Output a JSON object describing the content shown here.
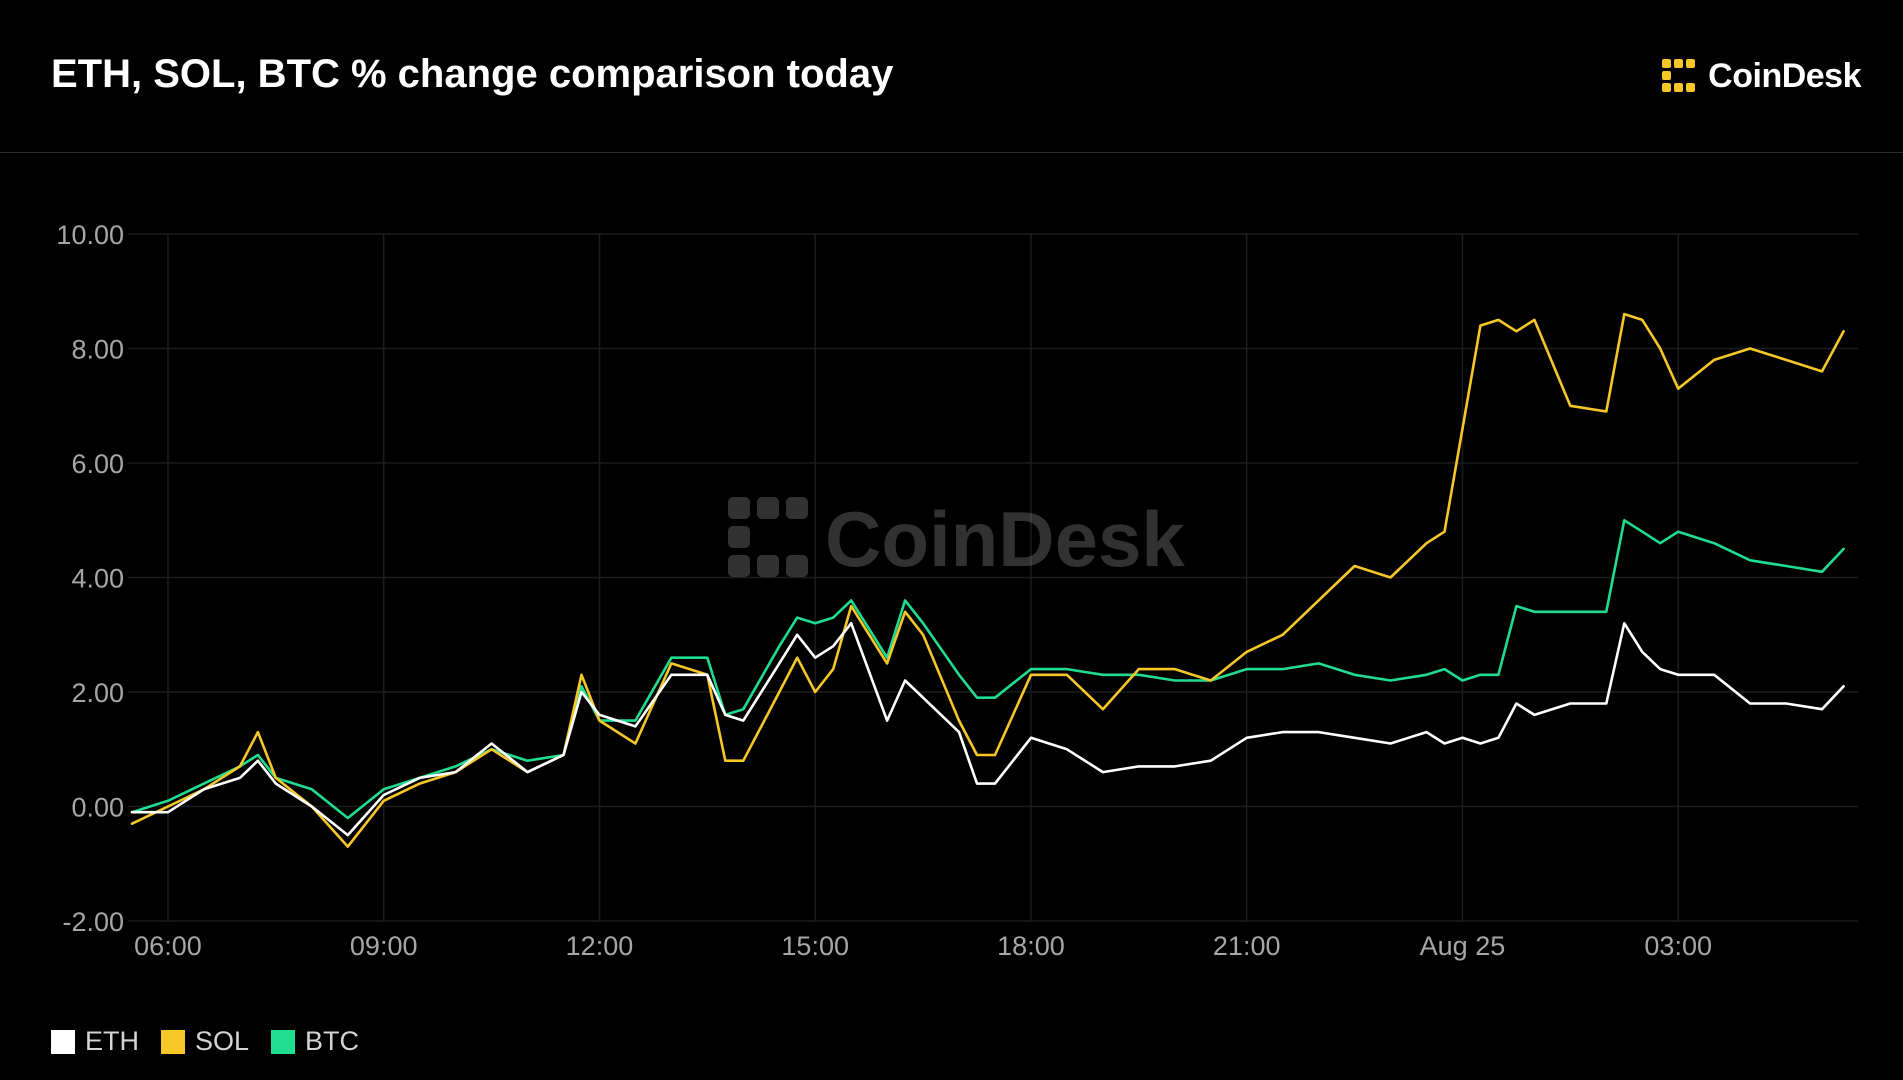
{
  "header": {
    "title": "ETH, SOL, BTC % change comparison today",
    "brand": "CoinDesk"
  },
  "watermark": "CoinDesk",
  "colors": {
    "background": "#000000",
    "ETH": "#ffffff",
    "SOL": "#f6c727",
    "BTC": "#1fdc8f",
    "brand_yellow": "#f6c727",
    "grid": "#1c1c1c",
    "tick_text": "#a6a6a6"
  },
  "chart_data": {
    "type": "line",
    "title": "ETH, SOL, BTC % change comparison today",
    "xlabel": "",
    "ylabel": "",
    "ylim": [
      -2,
      10
    ],
    "y_ticks": [
      "10.00",
      "8.00",
      "6.00",
      "4.00",
      "2.00",
      "0.00",
      "-2.00"
    ],
    "x_range_hours": [
      5.5,
      29.5
    ],
    "x_ticks": [
      {
        "t": 6,
        "label": "06:00"
      },
      {
        "t": 9,
        "label": "09:00"
      },
      {
        "t": 12,
        "label": "12:00"
      },
      {
        "t": 15,
        "label": "15:00"
      },
      {
        "t": 18,
        "label": "18:00"
      },
      {
        "t": 21,
        "label": "21:00"
      },
      {
        "t": 24,
        "label": "Aug 25"
      },
      {
        "t": 27,
        "label": "03:00"
      }
    ],
    "grid": true,
    "legend_position": "bottom-left",
    "x_hours": [
      5.5,
      6.0,
      6.5,
      7.0,
      7.25,
      7.5,
      8.0,
      8.5,
      9.0,
      9.5,
      10.0,
      10.5,
      11.0,
      11.5,
      11.75,
      12.0,
      12.5,
      13.0,
      13.5,
      13.75,
      14.0,
      14.5,
      14.75,
      15.0,
      15.25,
      15.5,
      16.0,
      16.25,
      16.5,
      17.0,
      17.25,
      17.5,
      18.0,
      18.5,
      19.0,
      19.5,
      20.0,
      20.5,
      21.0,
      21.5,
      22.0,
      22.5,
      23.0,
      23.5,
      23.75,
      24.0,
      24.25,
      24.5,
      24.75,
      25.0,
      25.5,
      26.0,
      26.25,
      26.5,
      26.75,
      27.0,
      27.5,
      28.0,
      28.5,
      29.0,
      29.3
    ],
    "series": [
      {
        "name": "ETH",
        "values": [
          -0.1,
          -0.1,
          0.3,
          0.5,
          0.8,
          0.4,
          0.0,
          -0.5,
          0.2,
          0.5,
          0.6,
          1.1,
          0.6,
          0.9,
          2.0,
          1.6,
          1.4,
          2.3,
          2.3,
          1.6,
          1.5,
          2.5,
          3.0,
          2.6,
          2.8,
          3.2,
          1.5,
          2.2,
          1.9,
          1.3,
          0.4,
          0.4,
          1.2,
          1.0,
          0.6,
          0.7,
          0.7,
          0.8,
          1.2,
          1.3,
          1.3,
          1.2,
          1.1,
          1.3,
          1.1,
          1.2,
          1.1,
          1.2,
          1.8,
          1.6,
          1.8,
          1.8,
          3.2,
          2.7,
          2.4,
          2.3,
          2.3,
          1.8,
          1.8,
          1.7,
          2.1
        ]
      },
      {
        "name": "SOL",
        "values": [
          -0.3,
          0.0,
          0.3,
          0.7,
          1.3,
          0.5,
          0.0,
          -0.7,
          0.1,
          0.4,
          0.6,
          1.0,
          0.6,
          0.9,
          2.3,
          1.5,
          1.1,
          2.5,
          2.3,
          0.8,
          0.8,
          2.0,
          2.6,
          2.0,
          2.4,
          3.5,
          2.5,
          3.4,
          3.0,
          1.5,
          0.9,
          0.9,
          2.3,
          2.3,
          1.7,
          2.4,
          2.4,
          2.2,
          2.7,
          3.0,
          3.6,
          4.2,
          4.0,
          4.6,
          4.8,
          6.6,
          8.4,
          8.5,
          8.3,
          8.5,
          7.0,
          6.9,
          8.6,
          8.5,
          8.0,
          7.3,
          7.8,
          8.0,
          7.8,
          7.6,
          8.3
        ]
      },
      {
        "name": "BTC",
        "values": [
          -0.1,
          0.1,
          0.4,
          0.7,
          0.9,
          0.5,
          0.3,
          -0.2,
          0.3,
          0.5,
          0.7,
          1.0,
          0.8,
          0.9,
          2.1,
          1.5,
          1.5,
          2.6,
          2.6,
          1.6,
          1.7,
          2.8,
          3.3,
          3.2,
          3.3,
          3.6,
          2.6,
          3.6,
          3.2,
          2.3,
          1.9,
          1.9,
          2.4,
          2.4,
          2.3,
          2.3,
          2.2,
          2.2,
          2.4,
          2.4,
          2.5,
          2.3,
          2.2,
          2.3,
          2.4,
          2.2,
          2.3,
          2.3,
          3.5,
          3.4,
          3.4,
          3.4,
          5.0,
          4.8,
          4.6,
          4.8,
          4.6,
          4.3,
          4.2,
          4.1,
          4.5
        ]
      }
    ]
  },
  "legend": [
    {
      "label": "ETH",
      "color": "#ffffff"
    },
    {
      "label": "SOL",
      "color": "#f6c727"
    },
    {
      "label": "BTC",
      "color": "#1fdc8f"
    }
  ]
}
